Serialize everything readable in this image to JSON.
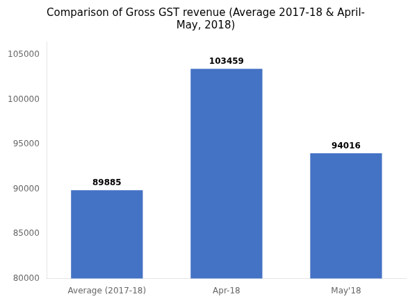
{
  "chart_data": {
    "type": "bar",
    "title": "Comparison of Gross GST revenue (Average 2017-18 & April-\nMay, 2018)",
    "categories": [
      "Average (2017-18)",
      "Apr-18",
      "May'18"
    ],
    "values": [
      89885,
      103459,
      94016
    ],
    "color": "#4472C4",
    "ylim": [
      80000,
      106500
    ],
    "yticks": [
      80000,
      85000,
      90000,
      95000,
      100000,
      105000
    ],
    "grid": false,
    "data_labels": true
  }
}
